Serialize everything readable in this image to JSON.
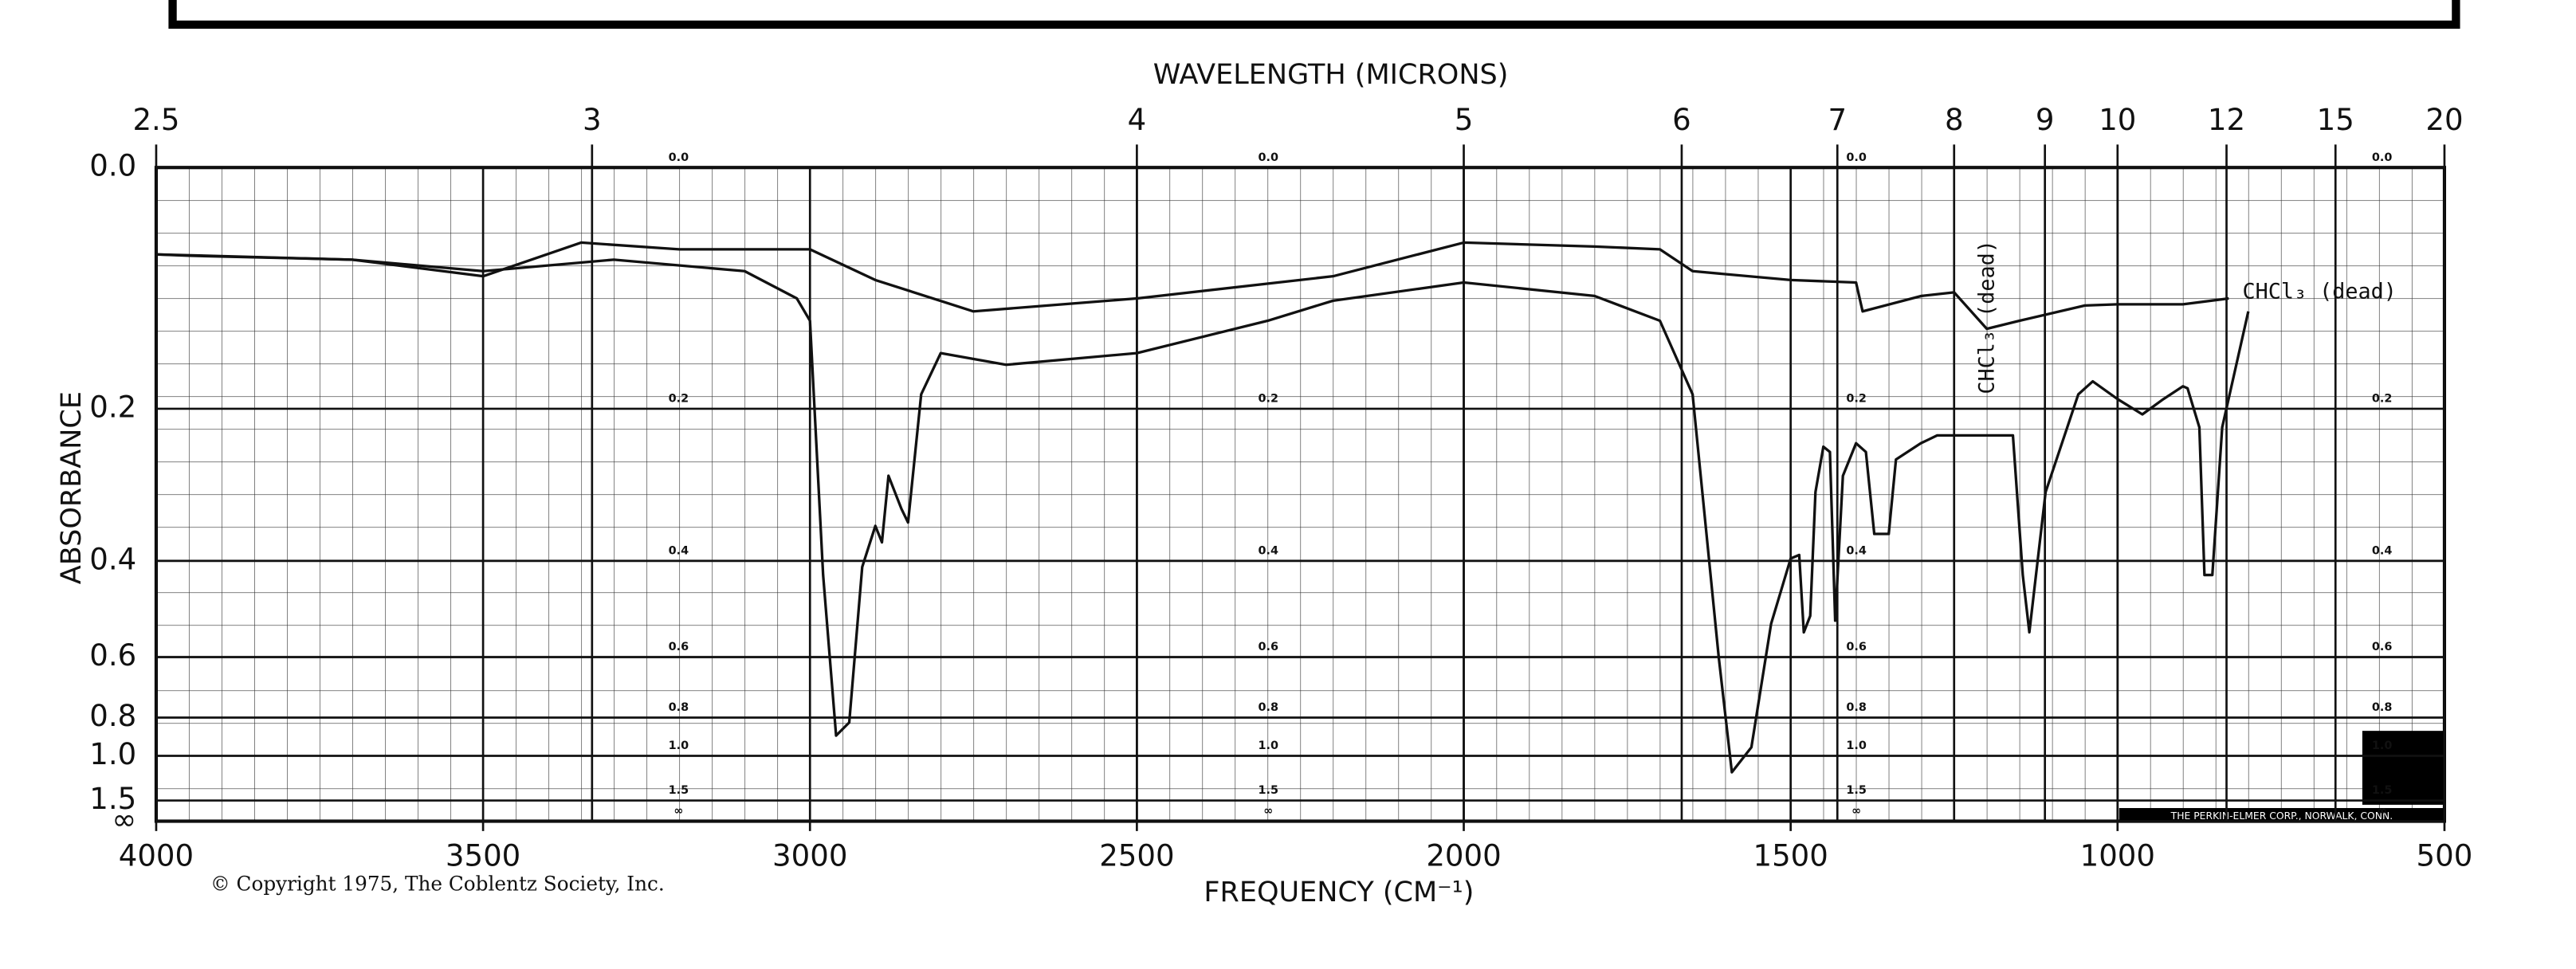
{
  "chart_data": {
    "type": "line",
    "x2label": "WAVELENGTH (MICRONS)",
    "xlabel": "FREQUENCY (CM⁻¹)",
    "ylabel": "ABSORBANCE",
    "yscale": "transmittance",
    "xlim": [
      4000,
      500
    ],
    "xticks": [
      4000,
      3500,
      3000,
      2500,
      2000,
      1500,
      1000,
      500
    ],
    "x2ticks": [
      2.5,
      3,
      4,
      5,
      6,
      7,
      8,
      9,
      10,
      12,
      15,
      20
    ],
    "ylim": [
      0,
      null
    ],
    "yticks": [
      {
        "value": 0,
        "label": "0.0"
      },
      0.2,
      0.4,
      0.6,
      0.8,
      {
        "value": 1,
        "label": "1.0"
      },
      1.5,
      {
        "value": null,
        "label": "∞"
      }
    ],
    "grid": true,
    "series": [
      {
        "color": "#111",
        "x": [
          4000,
          3950,
          3700,
          3500,
          3300,
          3100,
          3020,
          3000,
          2980,
          2960,
          2940,
          2920,
          2900,
          2890,
          2880,
          2860,
          2850,
          2830,
          2800,
          2700,
          2500,
          2300,
          2200,
          2000,
          1800,
          1700,
          1650,
          1610,
          1590,
          1560,
          1530,
          1500,
          1487,
          1480,
          1470,
          1462,
          1450,
          1440,
          1432,
          1420,
          1400,
          1385,
          1372,
          1350,
          1339,
          1301,
          1290,
          1276,
          1250,
          1200,
          1160,
          1145,
          1135,
          1110,
          1060,
          1038,
          1000,
          962,
          930,
          900,
          893,
          875,
          867,
          855,
          840,
          800
        ],
        "values": [
          0.062,
          0.063,
          0.066,
          0.075,
          0.066,
          0.075,
          0.097,
          0.116,
          0.424,
          0.883,
          0.821,
          0.41,
          0.345,
          0.37,
          0.277,
          0.321,
          0.34,
          0.185,
          0.145,
          0.156,
          0.145,
          0.116,
          0.099,
          0.084,
          0.095,
          0.116,
          0.185,
          0.6,
          1.125,
          0.947,
          0.52,
          0.396,
          0.39,
          0.539,
          0.503,
          0.298,
          0.242,
          0.248,
          0.513,
          0.277,
          0.238,
          0.248,
          0.357,
          0.357,
          0.257,
          0.238,
          0.234,
          0.229,
          0.229,
          0.229,
          0.229,
          0.424,
          0.539,
          0.298,
          0.185,
          0.172,
          0.19,
          0.206,
          0.19,
          0.177,
          0.179,
          0.22,
          0.424,
          0.424,
          0.22,
          0.108
        ]
      },
      {
        "color": "#111",
        "x": [
          4000,
          3700,
          3500,
          3350,
          3200,
          3000,
          2900,
          2750,
          2500,
          2200,
          2000,
          1800,
          1700,
          1650,
          1500,
          1400,
          1390,
          1300,
          1250,
          1200,
          1150,
          1050,
          1000,
          900,
          830
        ],
        "values": [
          0.062,
          0.066,
          0.079,
          0.053,
          0.058,
          0.058,
          0.082,
          0.108,
          0.097,
          0.079,
          0.053,
          0.056,
          0.058,
          0.075,
          0.082,
          0.084,
          0.108,
          0.095,
          0.092,
          0.123,
          0.116,
          0.103,
          0.102,
          0.102,
          0.097
        ]
      }
    ],
    "annotations": [
      "CHCl₃ (dead)",
      "CHCl₃ (dead)"
    ],
    "copyright": "© Copyright 1975, The Coblentz Society, Inc.",
    "maker": "THE PERKIN-ELMER CORP., NORWALK, CONN."
  }
}
